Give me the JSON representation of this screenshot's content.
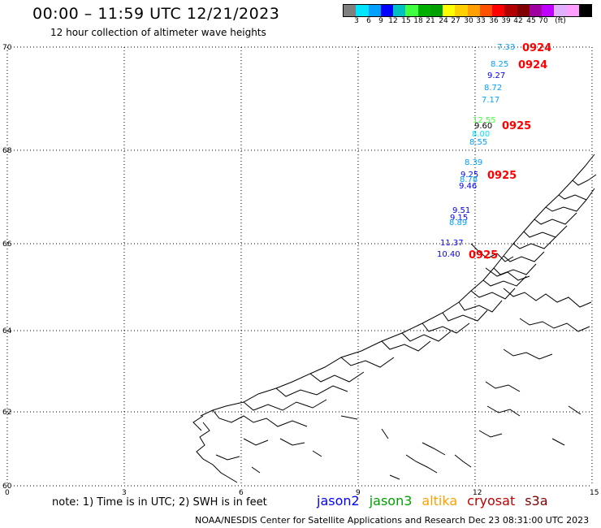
{
  "title": "00:00 – 11:59 UTC 12/21/2023",
  "subtitle": "12 hour collection of altimeter wave heights",
  "colorbar": {
    "colors": [
      "#7f7f7f",
      "#00e5ff",
      "#00a0ff",
      "#0000ff",
      "#00c0c0",
      "#40ff40",
      "#00b000",
      "#00a000",
      "#ffff00",
      "#ffd000",
      "#ffa000",
      "#ff5000",
      "#ff0000",
      "#b00000",
      "#800000",
      "#a000a0",
      "#c000ff",
      "#e0b0ff",
      "#ffa0ff",
      "#000000"
    ],
    "labels": [
      "3",
      "6",
      "9",
      "12",
      "15",
      "18",
      "21",
      "24",
      "27",
      "30",
      "33",
      "36",
      "39",
      "42",
      "45",
      "70",
      "(ft)"
    ]
  },
  "axes": {
    "lat_labels": [
      "70",
      "68",
      "66",
      "64",
      "62",
      "60"
    ],
    "lon_labels": [
      "0",
      "3",
      "6",
      "9",
      "12",
      "15"
    ]
  },
  "observations": [
    {
      "value": "7.33",
      "color": "#00a0ff"
    },
    {
      "value": "8.25",
      "color": "#00a0ff"
    },
    {
      "value": "9.27",
      "color": "#0000ff"
    },
    {
      "value": "8.72",
      "color": "#00a0ff"
    },
    {
      "value": "7.17",
      "color": "#00a0ff"
    },
    {
      "value": "12.55",
      "color": "#40ff40"
    },
    {
      "value": "9.60",
      "color": "#000000"
    },
    {
      "value": "8.00",
      "color": "#00e5ff"
    },
    {
      "value": "8.55",
      "color": "#00a0ff"
    },
    {
      "value": "8.39",
      "color": "#00a0ff"
    },
    {
      "value": "9.25",
      "color": "#0000ff"
    },
    {
      "value": "8.78",
      "color": "#00a0ff"
    },
    {
      "value": "9.46",
      "color": "#0000ff"
    },
    {
      "value": "9.51",
      "color": "#0000ff"
    },
    {
      "value": "9.15",
      "color": "#0000ff"
    },
    {
      "value": "8.89",
      "color": "#00a0ff"
    },
    {
      "value": "11.37",
      "color": "#0000ff"
    },
    {
      "value": "10.40",
      "color": "#0000ff"
    }
  ],
  "time_labels": [
    "0924",
    "0924",
    "0925",
    "0925",
    "0925"
  ],
  "time_label_color": "#ff0000",
  "note": "note:  1) Time is in UTC;  2) SWH is in feet",
  "legend": [
    {
      "label": "jason2",
      "color": "#0000ff"
    },
    {
      "label": "jason3",
      "color": "#00a000"
    },
    {
      "label": "altika",
      "color": "#ffa000"
    },
    {
      "label": "cryosat",
      "color": "#c00000"
    },
    {
      "label": "s3a",
      "color": "#800000"
    }
  ],
  "footer": "NOAA/NESDIS Center for Satellite Applications and Research    Dec 23 08:31:00 UTC 2023"
}
